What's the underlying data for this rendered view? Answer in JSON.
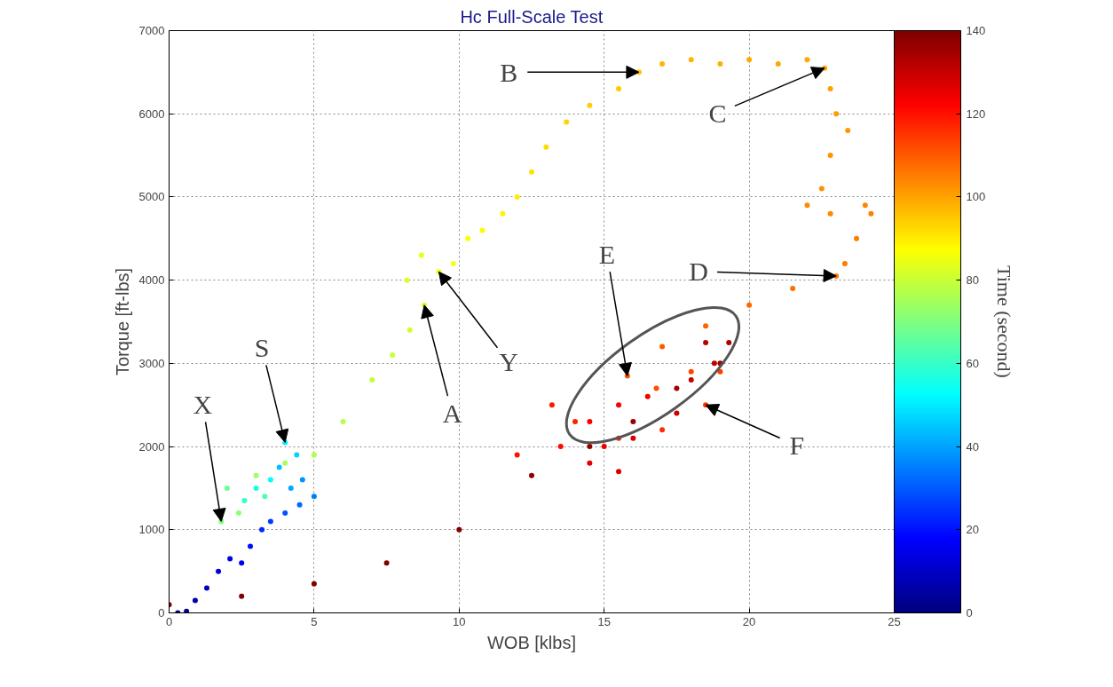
{
  "chart_data": {
    "type": "scatter",
    "title": "Hc Full-Scale Test",
    "xlabel": "WOB [klbs]",
    "ylabel": "Torque [ft-lbs]",
    "clabel": "Time (second)",
    "xlim": [
      0,
      25
    ],
    "xticks": [
      0,
      5,
      10,
      15,
      20,
      25
    ],
    "ylim": [
      0,
      7000
    ],
    "yticks": [
      0,
      1000,
      2000,
      3000,
      4000,
      5000,
      6000,
      7000
    ],
    "clim": [
      0,
      140
    ],
    "cticks": [
      0,
      20,
      40,
      60,
      80,
      100,
      120,
      140
    ],
    "grid": true,
    "marker": "circle",
    "legend": false,
    "x": [
      0.3,
      0.6,
      0.9,
      1.3,
      1.7,
      2.1,
      2.5,
      2.8,
      3.2,
      3.5,
      4.0,
      4.5,
      5.0,
      4.6,
      4.2,
      3.8,
      4.4,
      4.0,
      3.5,
      3.0,
      2.6,
      3.3,
      2.0,
      1.8,
      2.4,
      3.0,
      4.0,
      5.0,
      6.0,
      7.0,
      7.7,
      8.3,
      8.8,
      8.2,
      8.7,
      9.3,
      9.8,
      10.3,
      10.8,
      11.5,
      12.0,
      12.5,
      13.0,
      13.7,
      14.5,
      15.5,
      16.2,
      17.0,
      18.0,
      19.0,
      20.0,
      21.0,
      22.0,
      22.6,
      22.8,
      23.0,
      23.4,
      22.8,
      22.5,
      22.0,
      22.8,
      24.0,
      24.2,
      23.7,
      23.3,
      23.0,
      21.5,
      20.0,
      18.5,
      17.0,
      15.8,
      16.8,
      18.0,
      19.0,
      18.5,
      17.0,
      15.5,
      14.0,
      13.2,
      12.0,
      13.5,
      14.5,
      15.5,
      16.5,
      15.0,
      14.5,
      15.5,
      16.0,
      17.5,
      18.0,
      18.8,
      18.5,
      19.3,
      19.0,
      17.5,
      16.0,
      14.5,
      12.5,
      10.0,
      7.5,
      5.0,
      2.5,
      0
    ],
    "values": [
      0,
      20,
      150,
      300,
      500,
      650,
      600,
      800,
      1000,
      1100,
      1200,
      1300,
      1400,
      1600,
      1500,
      1750,
      1900,
      2050,
      1600,
      1500,
      1350,
      1400,
      1500,
      1100,
      1200,
      1650,
      1800,
      1900,
      2300,
      2800,
      3100,
      3400,
      3700,
      4000,
      4300,
      4100,
      4200,
      4500,
      4600,
      4800,
      5000,
      5300,
      5600,
      5900,
      6100,
      6300,
      6500,
      6600,
      6650,
      6600,
      6650,
      6600,
      6650,
      6550,
      6300,
      6000,
      5800,
      5500,
      5100,
      4900,
      4800,
      4900,
      4800,
      4500,
      4200,
      4050,
      3900,
      3700,
      3450,
      3200,
      2850,
      2700,
      2900,
      2900,
      2500,
      2200,
      2100,
      2300,
      2500,
      1900,
      2000,
      2300,
      2500,
      2600,
      2000,
      1800,
      1700,
      2100,
      2400,
      2800,
      3000,
      3250,
      3250,
      3000,
      2700,
      2300,
      2000,
      1650,
      1000,
      600,
      350,
      200,
      100
    ],
    "cvalues": [
      0,
      3,
      6,
      9,
      12,
      15,
      17,
      20,
      23,
      26,
      29,
      32,
      35,
      38,
      41,
      44,
      47,
      50,
      53,
      56,
      60,
      63,
      67,
      70,
      72,
      74,
      76,
      77,
      78,
      79,
      80,
      81,
      82,
      83,
      84,
      85,
      86,
      87,
      88,
      89,
      90,
      91,
      92,
      93,
      94,
      95,
      96,
      97,
      97.5,
      98,
      98.5,
      99,
      99.5,
      100,
      100.5,
      101,
      101.5,
      102,
      102.5,
      103,
      103.5,
      104,
      104.5,
      105,
      105.5,
      106,
      107,
      108,
      109,
      110,
      111,
      112,
      113,
      114,
      115,
      116,
      117,
      118,
      119,
      120,
      121,
      122,
      123,
      124,
      125,
      126,
      127,
      128,
      129,
      130,
      131,
      132,
      133,
      134,
      135,
      136,
      137,
      138,
      139,
      139.5,
      140,
      140,
      140
    ],
    "annotations": [
      {
        "text": "B",
        "x": 16.2,
        "y": 6500
      },
      {
        "text": "C",
        "x": 22.6,
        "y": 6550
      },
      {
        "text": "D",
        "x": 23.0,
        "y": 4050
      },
      {
        "text": "E",
        "x": 15.8,
        "y": 2850
      },
      {
        "text": "F",
        "x": 18.5,
        "y": 2500
      },
      {
        "text": "A",
        "x": 8.8,
        "y": 3700
      },
      {
        "text": "Y",
        "x": 9.3,
        "y": 4100
      },
      {
        "text": "S",
        "x": 4.0,
        "y": 2050
      },
      {
        "text": "X",
        "x": 1.8,
        "y": 1100
      }
    ]
  }
}
